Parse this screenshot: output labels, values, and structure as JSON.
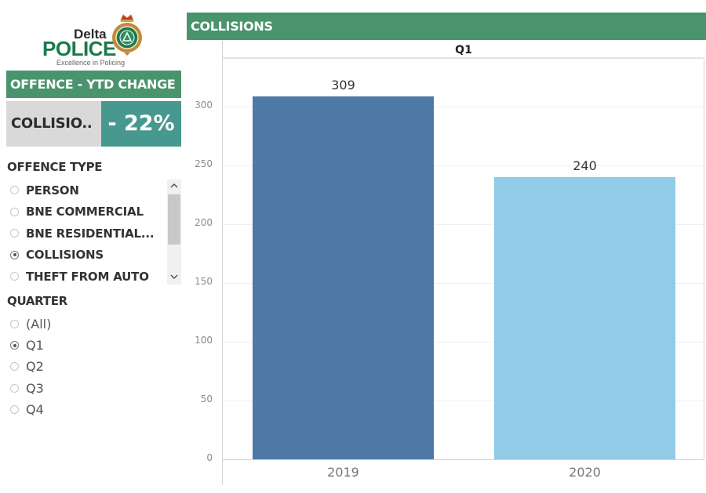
{
  "logo": {
    "line1": "Delta",
    "line2": "POLICE",
    "tagline": "Excellence in Policing"
  },
  "ytd": {
    "header": "OFFENCE - YTD CHANGE",
    "offence": "COLLISIO..",
    "change": "- 22%",
    "colors": {
      "header_bg": "#4a946d",
      "offence_bg": "#d9d9d9",
      "change_bg": "#47998f"
    }
  },
  "offence_filter": {
    "title": "OFFENCE TYPE",
    "items": [
      {
        "label": "PERSON",
        "checked": false
      },
      {
        "label": "BNE COMMERCIAL",
        "checked": false
      },
      {
        "label": "BNE RESIDENTIAL...",
        "checked": false
      },
      {
        "label": "COLLISIONS",
        "checked": true
      },
      {
        "label": "THEFT FROM AUTO",
        "checked": false
      }
    ],
    "scroll_up_icon": "^",
    "scroll_down_icon": "v"
  },
  "quarter_filter": {
    "title": "QUARTER",
    "items": [
      {
        "label": "(All)",
        "checked": false
      },
      {
        "label": "Q1",
        "checked": true
      },
      {
        "label": "Q2",
        "checked": false
      },
      {
        "label": "Q3",
        "checked": false
      },
      {
        "label": "Q4",
        "checked": false
      }
    ]
  },
  "chart": {
    "header": "COLLISIONS",
    "pane_title": "Q1"
  },
  "chart_data": {
    "type": "bar",
    "title": "COLLISIONS",
    "subtitle": "Q1",
    "categories": [
      "2019",
      "2020"
    ],
    "values": [
      309,
      240
    ],
    "colors": [
      "#4e79a7",
      "#92cbe8"
    ],
    "data_labels": [
      "309",
      "240"
    ],
    "xlabel": "",
    "ylabel": "",
    "ylim": [
      0,
      340
    ],
    "yticks": [
      0,
      50,
      100,
      150,
      200,
      250,
      300
    ],
    "grid": true,
    "legend": null
  }
}
